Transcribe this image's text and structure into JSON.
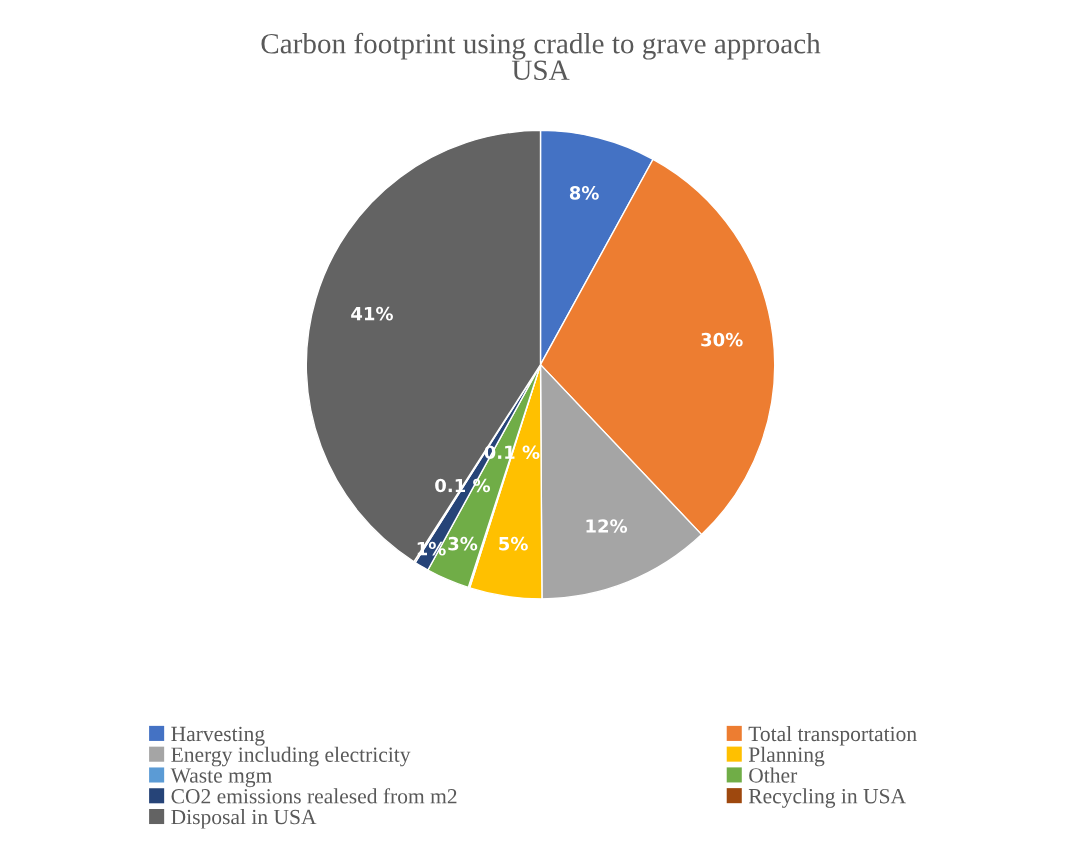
{
  "chart_data": {
    "type": "pie",
    "title": "Carbon footprint using cradle to grave approach\nUSA",
    "categories": [
      "Harvesting",
      "Total transportation",
      "Energy including electricity",
      "Planning",
      "Waste mgm",
      "Other",
      "CO2 emissions realesed from m2",
      "Recycling in USA",
      "Disposal in USA"
    ],
    "values": [
      8,
      30,
      12,
      5,
      0.1,
      3,
      1,
      0.1,
      41
    ],
    "value_labels": [
      "8%",
      "30%",
      "12%",
      "5%",
      "0.1 %",
      "3%",
      "1%",
      "0.1 %",
      "41%"
    ],
    "colors": [
      "#4472c4",
      "#ed7d31",
      "#a5a5a5",
      "#ffc000",
      "#5b9bd5",
      "#70ad47",
      "#264478",
      "#9e480e",
      "#636363"
    ],
    "legend": "bottom"
  }
}
